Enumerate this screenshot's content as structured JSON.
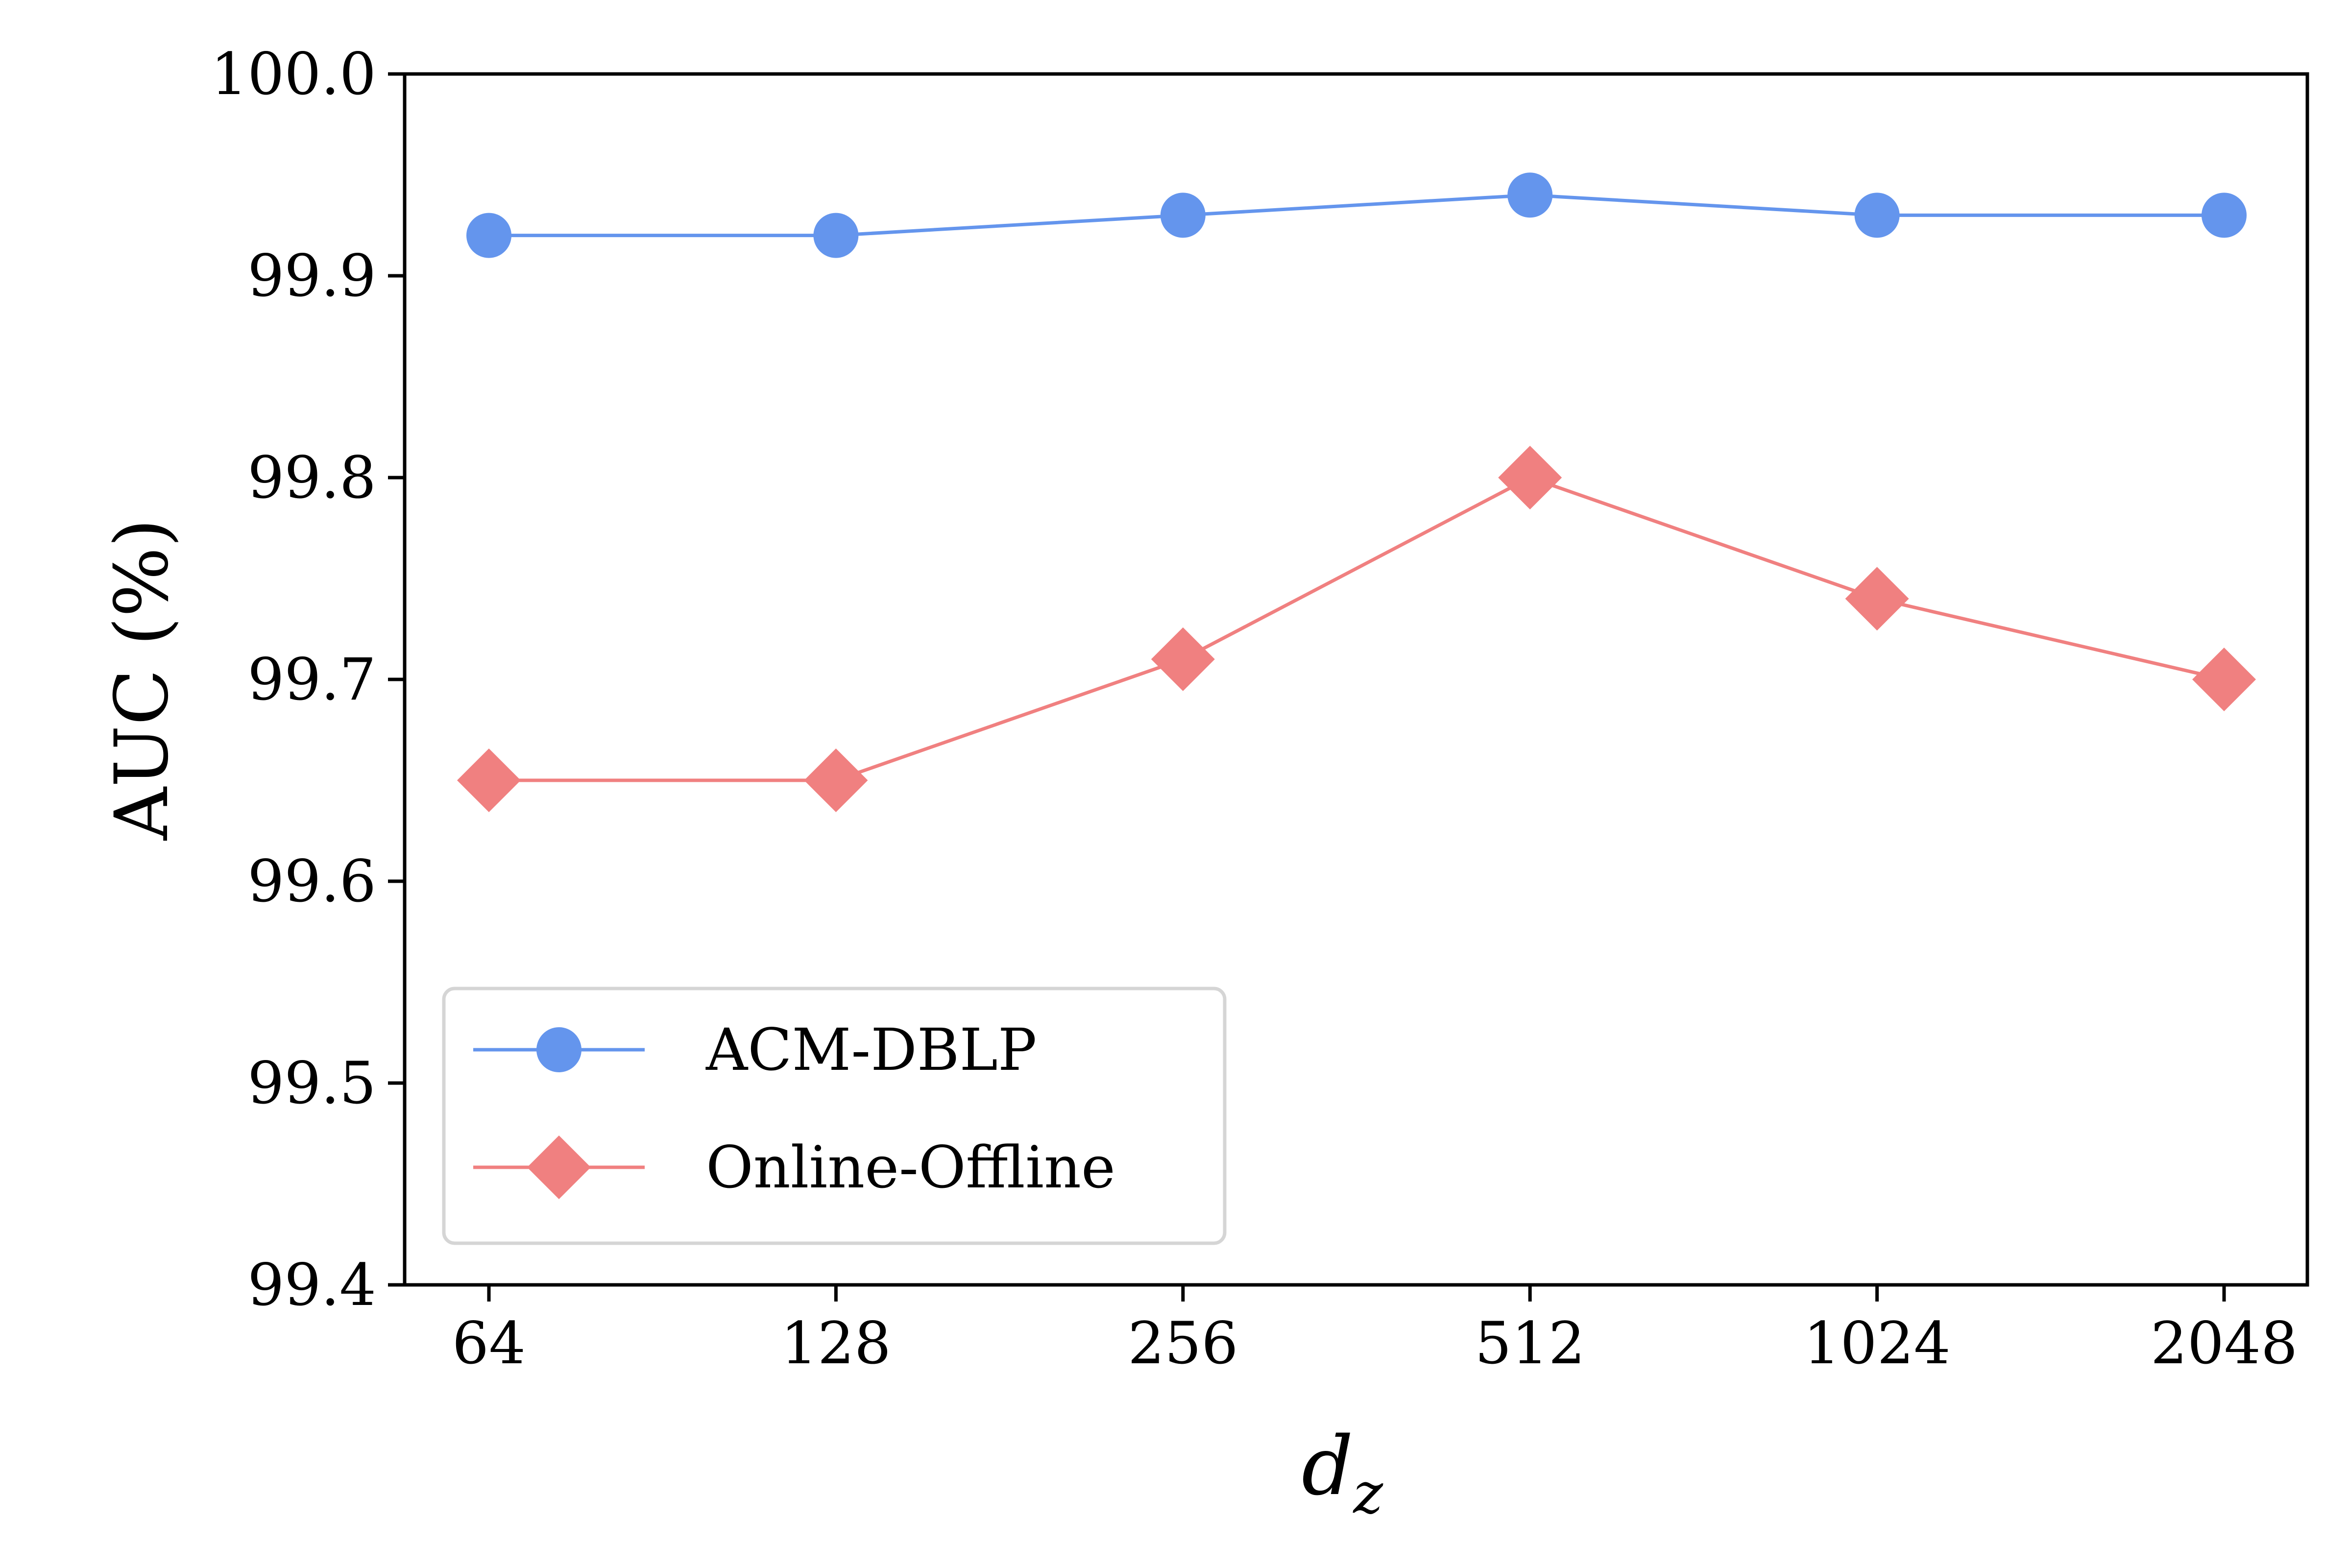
{
  "chart_data": {
    "type": "line",
    "x": [
      "64",
      "128",
      "256",
      "512",
      "1024",
      "2048"
    ],
    "xlabel": "d",
    "xlabel_subscript": "z",
    "ylabel": "AUC (%)",
    "ylim": [
      99.4,
      100.0
    ],
    "yticks": [
      "99.4",
      "99.5",
      "99.6",
      "99.7",
      "99.8",
      "99.9",
      "100.0"
    ],
    "grid": false,
    "legend_position": "lower-left",
    "series": [
      {
        "name": "ACM-DBLP",
        "marker": "circle",
        "color": "#6495ED",
        "values": [
          99.92,
          99.92,
          99.93,
          99.94,
          99.93,
          99.93
        ]
      },
      {
        "name": "Online-Offline",
        "marker": "diamond",
        "color": "#F08080",
        "values": [
          99.65,
          99.65,
          99.71,
          99.8,
          99.74,
          99.7
        ]
      }
    ]
  }
}
